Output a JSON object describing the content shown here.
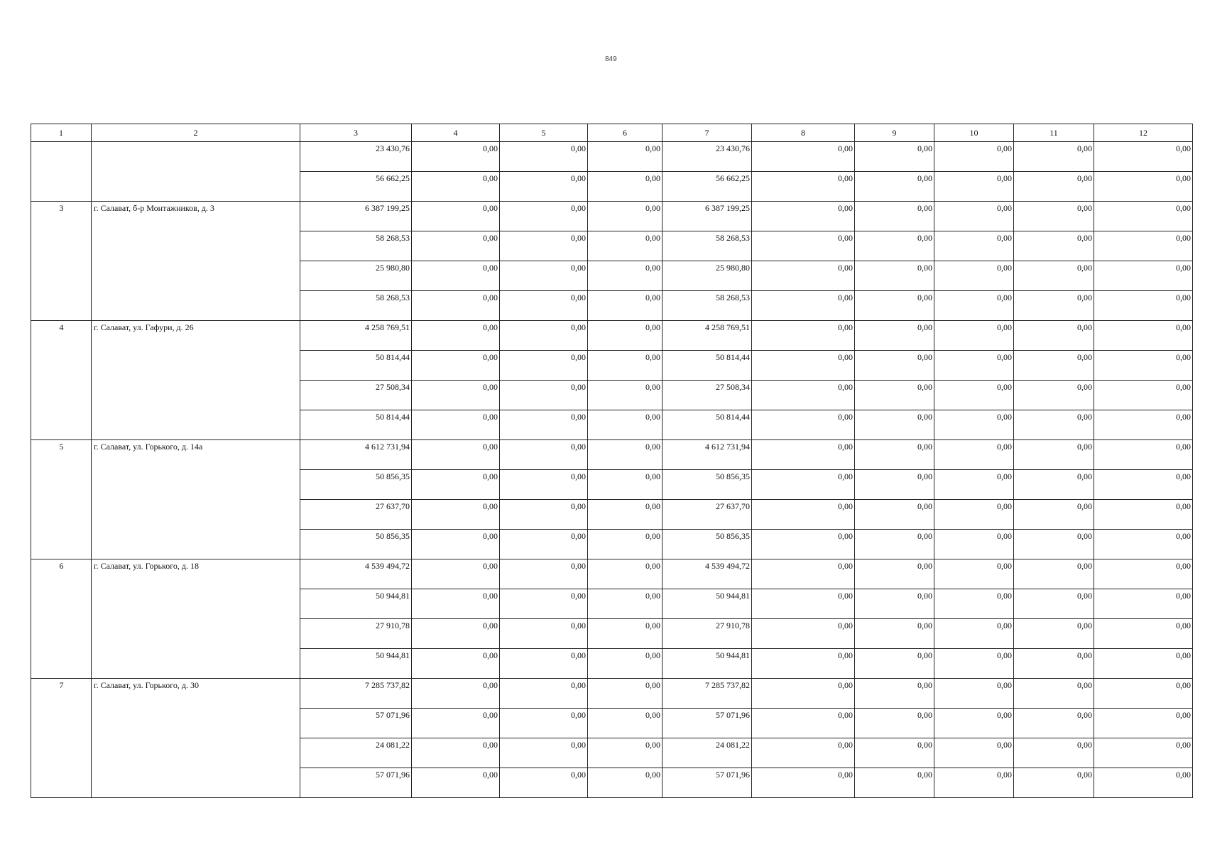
{
  "page_number": "849",
  "columns": [
    "1",
    "2",
    "3",
    "4",
    "5",
    "6",
    "7",
    "8",
    "9",
    "10",
    "11",
    "12"
  ],
  "groups": [
    {
      "number": "",
      "address": "",
      "rows": [
        [
          "23 430,76",
          "0,00",
          "0,00",
          "0,00",
          "23 430,76",
          "0,00",
          "0,00",
          "0,00",
          "0,00",
          "0,00"
        ],
        [
          "56 662,25",
          "0,00",
          "0,00",
          "0,00",
          "56 662,25",
          "0,00",
          "0,00",
          "0,00",
          "0,00",
          "0,00"
        ]
      ]
    },
    {
      "number": "3",
      "address": "г. Салават, б-р Монтажников, д. 3",
      "rows": [
        [
          "6 387 199,25",
          "0,00",
          "0,00",
          "0,00",
          "6 387 199,25",
          "0,00",
          "0,00",
          "0,00",
          "0,00",
          "0,00"
        ],
        [
          "58 268,53",
          "0,00",
          "0,00",
          "0,00",
          "58 268,53",
          "0,00",
          "0,00",
          "0,00",
          "0,00",
          "0,00"
        ],
        [
          "25 980,80",
          "0,00",
          "0,00",
          "0,00",
          "25 980,80",
          "0,00",
          "0,00",
          "0,00",
          "0,00",
          "0,00"
        ],
        [
          "58 268,53",
          "0,00",
          "0,00",
          "0,00",
          "58 268,53",
          "0,00",
          "0,00",
          "0,00",
          "0,00",
          "0,00"
        ]
      ]
    },
    {
      "number": "4",
      "address": "г. Салават, ул. Гафури, д. 26",
      "rows": [
        [
          "4 258 769,51",
          "0,00",
          "0,00",
          "0,00",
          "4 258 769,51",
          "0,00",
          "0,00",
          "0,00",
          "0,00",
          "0,00"
        ],
        [
          "50 814,44",
          "0,00",
          "0,00",
          "0,00",
          "50 814,44",
          "0,00",
          "0,00",
          "0,00",
          "0,00",
          "0,00"
        ],
        [
          "27 508,34",
          "0,00",
          "0,00",
          "0,00",
          "27 508,34",
          "0,00",
          "0,00",
          "0,00",
          "0,00",
          "0,00"
        ],
        [
          "50 814,44",
          "0,00",
          "0,00",
          "0,00",
          "50 814,44",
          "0,00",
          "0,00",
          "0,00",
          "0,00",
          "0,00"
        ]
      ]
    },
    {
      "number": "5",
      "address": "г. Салават, ул. Горького, д. 14а",
      "rows": [
        [
          "4 612 731,94",
          "0,00",
          "0,00",
          "0,00",
          "4 612 731,94",
          "0,00",
          "0,00",
          "0,00",
          "0,00",
          "0,00"
        ],
        [
          "50 856,35",
          "0,00",
          "0,00",
          "0,00",
          "50 856,35",
          "0,00",
          "0,00",
          "0,00",
          "0,00",
          "0,00"
        ],
        [
          "27 637,70",
          "0,00",
          "0,00",
          "0,00",
          "27 637,70",
          "0,00",
          "0,00",
          "0,00",
          "0,00",
          "0,00"
        ],
        [
          "50 856,35",
          "0,00",
          "0,00",
          "0,00",
          "50 856,35",
          "0,00",
          "0,00",
          "0,00",
          "0,00",
          "0,00"
        ]
      ]
    },
    {
      "number": "6",
      "address": "г. Салават, ул. Горького, д. 18",
      "rows": [
        [
          "4 539 494,72",
          "0,00",
          "0,00",
          "0,00",
          "4 539 494,72",
          "0,00",
          "0,00",
          "0,00",
          "0,00",
          "0,00"
        ],
        [
          "50 944,81",
          "0,00",
          "0,00",
          "0,00",
          "50 944,81",
          "0,00",
          "0,00",
          "0,00",
          "0,00",
          "0,00"
        ],
        [
          "27 910,78",
          "0,00",
          "0,00",
          "0,00",
          "27 910,78",
          "0,00",
          "0,00",
          "0,00",
          "0,00",
          "0,00"
        ],
        [
          "50 944,81",
          "0,00",
          "0,00",
          "0,00",
          "50 944,81",
          "0,00",
          "0,00",
          "0,00",
          "0,00",
          "0,00"
        ]
      ]
    },
    {
      "number": "7",
      "address": "г. Салават, ул. Горького, д. 30",
      "rows": [
        [
          "7 285 737,82",
          "0,00",
          "0,00",
          "0,00",
          "7 285 737,82",
          "0,00",
          "0,00",
          "0,00",
          "0,00",
          "0,00"
        ],
        [
          "57 071,96",
          "0,00",
          "0,00",
          "0,00",
          "57 071,96",
          "0,00",
          "0,00",
          "0,00",
          "0,00",
          "0,00"
        ],
        [
          "24 081,22",
          "0,00",
          "0,00",
          "0,00",
          "24 081,22",
          "0,00",
          "0,00",
          "0,00",
          "0,00",
          "0,00"
        ],
        [
          "57 071,96",
          "0,00",
          "0,00",
          "0,00",
          "57 071,96",
          "0,00",
          "0,00",
          "0,00",
          "0,00",
          "0,00"
        ]
      ]
    }
  ]
}
